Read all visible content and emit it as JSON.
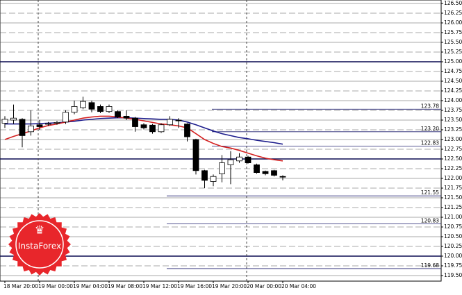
{
  "chart_data": {
    "type": "candlestick",
    "categories": [
      "18 Mar 20:00",
      null,
      null,
      null,
      "19 Mar 00:00",
      null,
      null,
      null,
      "19 Mar 04:00",
      null,
      null,
      null,
      "19 Mar 08:00",
      null,
      null,
      null,
      "19 Mar 12:00",
      null,
      null,
      null,
      "19 Mar 16:00",
      null,
      null,
      null,
      "19 Mar 20:00",
      null,
      null,
      null,
      "20 Mar 00:00",
      null,
      null,
      null,
      "20 Mar 04:00"
    ],
    "open": [
      123.42,
      123.5,
      123.52,
      123.2,
      123.38,
      123.4,
      123.42,
      123.45,
      123.7,
      123.82,
      123.95,
      123.85,
      123.72,
      123.72,
      123.6,
      123.55,
      123.38,
      123.37,
      123.2,
      123.38,
      123.5,
      123.4,
      123.0,
      122.2,
      121.92,
      122.12,
      122.35,
      122.45,
      122.55,
      122.35,
      122.18,
      122.2,
      122.05
    ],
    "high": [
      123.6,
      123.9,
      123.55,
      123.75,
      123.5,
      123.45,
      123.48,
      123.75,
      124.0,
      124.1,
      124.0,
      123.9,
      123.9,
      123.75,
      123.75,
      123.58,
      123.42,
      123.4,
      123.42,
      123.6,
      123.55,
      123.42,
      123.02,
      122.22,
      122.1,
      122.6,
      122.7,
      122.65,
      122.58,
      122.38,
      122.2,
      122.22,
      122.08
    ],
    "low": [
      123.3,
      123.4,
      122.8,
      123.1,
      123.25,
      123.35,
      123.38,
      123.4,
      123.65,
      123.78,
      123.7,
      123.68,
      123.68,
      123.55,
      123.5,
      123.2,
      123.26,
      123.15,
      123.17,
      123.35,
      123.3,
      122.95,
      122.1,
      121.75,
      121.8,
      121.9,
      121.85,
      122.4,
      122.38,
      122.12,
      122.08,
      122.05,
      121.95
    ],
    "close": [
      123.52,
      123.55,
      123.1,
      123.35,
      123.33,
      123.41,
      123.44,
      123.7,
      123.85,
      123.98,
      123.78,
      123.72,
      123.85,
      123.58,
      123.55,
      123.33,
      123.3,
      123.2,
      123.38,
      123.52,
      123.48,
      123.07,
      122.2,
      121.95,
      122.05,
      122.4,
      122.48,
      122.55,
      122.4,
      122.15,
      122.12,
      122.08,
      122.04
    ],
    "series": [
      {
        "color": "#1c1c8c",
        "values": [
          123.4,
          123.4,
          123.4,
          123.4,
          123.41,
          123.42,
          123.43,
          123.45,
          123.47,
          123.5,
          123.52,
          123.54,
          123.55,
          123.56,
          123.56,
          123.55,
          123.54,
          123.53,
          123.52,
          123.52,
          123.5,
          123.45,
          123.38,
          123.3,
          123.22,
          123.15,
          123.1,
          123.05,
          123.02,
          122.98,
          122.95,
          122.92,
          122.88
        ]
      },
      {
        "color": "#d42020",
        "values": [
          123.0,
          123.08,
          123.15,
          123.22,
          123.3,
          123.36,
          123.4,
          123.45,
          123.5,
          123.55,
          123.58,
          123.6,
          123.6,
          123.58,
          123.55,
          123.52,
          123.48,
          123.44,
          123.4,
          123.38,
          123.35,
          123.3,
          123.15,
          123.0,
          122.9,
          122.82,
          122.78,
          122.72,
          122.65,
          122.58,
          122.52,
          122.48,
          122.45
        ]
      }
    ],
    "ylim": [
      119.5,
      126.5
    ],
    "yticks": [
      {
        "value": 119.5,
        "label": "119.50"
      },
      {
        "value": 119.75,
        "label": "119.75"
      },
      {
        "value": 120.0,
        "label": "120.00"
      },
      {
        "value": 120.25,
        "label": "120.25"
      },
      {
        "value": 120.5,
        "label": "120.50"
      },
      {
        "value": 120.75,
        "label": "120.75"
      },
      {
        "value": 121.0,
        "label": "121.00"
      },
      {
        "value": 121.25,
        "label": "121.25"
      },
      {
        "value": 121.5,
        "label": "121.50"
      },
      {
        "value": 121.75,
        "label": "121.75"
      },
      {
        "value": 122.0,
        "label": "122.00"
      },
      {
        "value": 122.25,
        "label": "122.25"
      },
      {
        "value": 122.5,
        "label": "122.50"
      },
      {
        "value": 122.75,
        "label": "122.75"
      },
      {
        "value": 123.0,
        "label": "123.00"
      },
      {
        "value": 123.25,
        "label": "123.25"
      },
      {
        "value": 123.5,
        "label": "123.50"
      },
      {
        "value": 123.75,
        "label": "123.75"
      },
      {
        "value": 124.0,
        "label": "124.00"
      },
      {
        "value": 124.25,
        "label": "124.25"
      },
      {
        "value": 124.5,
        "label": "124.50"
      },
      {
        "value": 124.75,
        "label": "124.75"
      },
      {
        "value": 125.0,
        "label": "125.00"
      },
      {
        "value": 125.25,
        "label": "125.25"
      },
      {
        "value": 125.5,
        "label": "125.50"
      },
      {
        "value": 125.75,
        "label": "125.75"
      },
      {
        "value": 126.0,
        "label": "126.00"
      },
      {
        "value": 126.25,
        "label": "126.25"
      },
      {
        "value": 126.5,
        "label": "126.50"
      }
    ],
    "key_levels": [
      125.0,
      122.5,
      120.0
    ],
    "levels": [
      {
        "value": 123.78,
        "label": "123.78"
      },
      {
        "value": 123.2,
        "label": "123.20"
      },
      {
        "value": 122.83,
        "label": "122.83"
      },
      {
        "value": 121.55,
        "label": "121.55"
      },
      {
        "value": 120.83,
        "label": "120.83"
      },
      {
        "value": 119.68,
        "label": "119.68"
      }
    ],
    "grid": true,
    "logo": "InstaForex"
  }
}
